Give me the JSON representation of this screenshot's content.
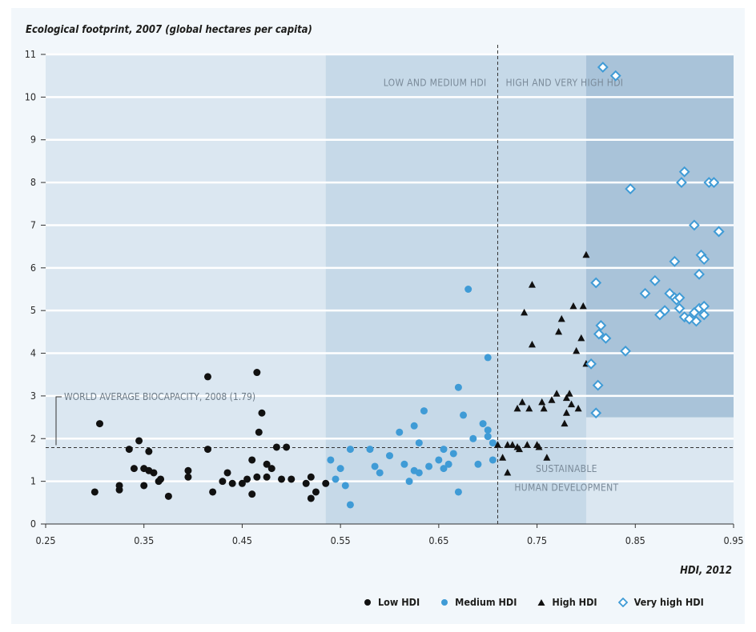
{
  "chart_data": {
    "type": "scatter",
    "ylabel": "Ecological footprint, 2007 (global hectares per capita)",
    "xlabel": "HDI, 2012",
    "xlim": [
      0.25,
      0.95
    ],
    "ylim": [
      0,
      11
    ],
    "xticks": [
      "0.25",
      "0.35",
      "0.45",
      "0.55",
      "0.65",
      "0.75",
      "0.85",
      "0.95"
    ],
    "yticks": [
      "0",
      "1",
      "2",
      "3",
      "4",
      "5",
      "6",
      "7",
      "8",
      "9",
      "10",
      "11"
    ],
    "grid": "horizontal",
    "legend_position": "bottom-right",
    "annotations": {
      "low_medium_region": "LOW AND MEDIUM HDI",
      "high_very_high_region": "HIGH AND VERY HIGH HDI",
      "biocapacity_line": "WORLD AVERAGE BIOCAPACITY, 2008 (1.79)",
      "biocapacity_value": 1.79,
      "hdi_threshold": 0.71,
      "sustainable_line1": "SUSTAINABLE",
      "sustainable_line2": "HUMAN DEVELOPMENT"
    },
    "colors": {
      "low": "#111111",
      "medium": "#3f9bd6",
      "high": "#111111",
      "very_high": "#3f9bd6",
      "band_light": "#dbe7f1",
      "band_mid": "#c6d9e8",
      "band_dark": "#a9c3d9",
      "background": "#f2f7fb"
    },
    "series": [
      {
        "name": "Low HDI",
        "marker": "circle",
        "x": [
          0.3,
          0.305,
          0.325,
          0.325,
          0.335,
          0.34,
          0.345,
          0.35,
          0.35,
          0.355,
          0.355,
          0.36,
          0.365,
          0.367,
          0.375,
          0.395,
          0.395,
          0.415,
          0.415,
          0.42,
          0.43,
          0.435,
          0.44,
          0.45,
          0.455,
          0.46,
          0.46,
          0.465,
          0.465,
          0.467,
          0.47,
          0.475,
          0.475,
          0.48,
          0.485,
          0.49,
          0.495,
          0.5,
          0.515,
          0.52,
          0.52,
          0.525,
          0.535
        ],
        "y": [
          0.75,
          2.35,
          0.8,
          0.9,
          1.75,
          1.3,
          1.95,
          0.9,
          1.3,
          1.25,
          1.7,
          1.2,
          1.0,
          1.05,
          0.65,
          1.25,
          1.1,
          3.45,
          1.75,
          0.75,
          1.0,
          1.2,
          0.95,
          0.95,
          1.05,
          0.7,
          1.5,
          1.1,
          3.55,
          2.15,
          2.6,
          1.4,
          1.1,
          1.3,
          1.8,
          1.05,
          1.8,
          1.05,
          0.95,
          0.6,
          1.1,
          0.75,
          0.95
        ]
      },
      {
        "name": "Medium HDI",
        "marker": "circle",
        "x": [
          0.54,
          0.545,
          0.55,
          0.555,
          0.56,
          0.56,
          0.58,
          0.585,
          0.59,
          0.6,
          0.61,
          0.615,
          0.62,
          0.625,
          0.625,
          0.63,
          0.63,
          0.635,
          0.64,
          0.65,
          0.655,
          0.655,
          0.66,
          0.665,
          0.67,
          0.67,
          0.675,
          0.68,
          0.685,
          0.69,
          0.695,
          0.7,
          0.7,
          0.7,
          0.705,
          0.705
        ],
        "y": [
          1.5,
          1.05,
          1.3,
          0.9,
          1.75,
          0.45,
          1.75,
          1.35,
          1.2,
          1.6,
          2.15,
          1.4,
          1.0,
          1.25,
          2.3,
          1.2,
          1.9,
          2.65,
          1.35,
          1.5,
          1.75,
          1.3,
          1.4,
          1.65,
          3.2,
          0.75,
          2.55,
          5.5,
          2.0,
          1.4,
          2.35,
          3.9,
          2.2,
          2.05,
          1.5,
          1.9
        ]
      },
      {
        "name": "High HDI",
        "marker": "triangle",
        "x": [
          0.71,
          0.715,
          0.72,
          0.72,
          0.725,
          0.73,
          0.73,
          0.732,
          0.735,
          0.737,
          0.74,
          0.742,
          0.745,
          0.745,
          0.75,
          0.752,
          0.755,
          0.757,
          0.76,
          0.765,
          0.77,
          0.772,
          0.775,
          0.778,
          0.78,
          0.78,
          0.783,
          0.785,
          0.787,
          0.79,
          0.792,
          0.795,
          0.797,
          0.8,
          0.8
        ],
        "y": [
          1.85,
          1.55,
          1.2,
          1.85,
          1.85,
          2.7,
          1.8,
          1.75,
          2.85,
          4.95,
          1.85,
          2.7,
          4.2,
          5.6,
          1.85,
          1.8,
          2.85,
          2.7,
          1.55,
          2.9,
          3.05,
          4.5,
          4.8,
          2.35,
          2.6,
          2.95,
          3.05,
          2.8,
          5.1,
          4.05,
          2.7,
          4.35,
          5.1,
          3.75,
          6.3
        ]
      },
      {
        "name": "Very high HDI",
        "marker": "diamond",
        "x": [
          0.805,
          0.81,
          0.81,
          0.812,
          0.813,
          0.815,
          0.817,
          0.82,
          0.83,
          0.84,
          0.845,
          0.86,
          0.87,
          0.875,
          0.88,
          0.885,
          0.89,
          0.89,
          0.892,
          0.895,
          0.895,
          0.897,
          0.9,
          0.9,
          0.905,
          0.91,
          0.91,
          0.912,
          0.915,
          0.915,
          0.917,
          0.92,
          0.92,
          0.92,
          0.925,
          0.93,
          0.935,
          0.935
        ],
        "y": [
          3.75,
          5.65,
          2.6,
          3.25,
          4.45,
          4.65,
          10.7,
          4.35,
          10.5,
          4.05,
          7.85,
          5.4,
          5.7,
          4.9,
          5.0,
          5.4,
          6.15,
          5.3,
          5.25,
          5.3,
          5.05,
          8.0,
          4.85,
          8.25,
          4.8,
          4.95,
          7.0,
          4.75,
          5.05,
          5.85,
          6.3,
          4.9,
          5.1,
          6.2,
          8.0,
          8.0,
          6.85,
          6.85
        ]
      }
    ]
  },
  "legend": [
    {
      "label": "Low HDI"
    },
    {
      "label": "Medium HDI"
    },
    {
      "label": "High HDI"
    },
    {
      "label": "Very high HDI"
    }
  ]
}
